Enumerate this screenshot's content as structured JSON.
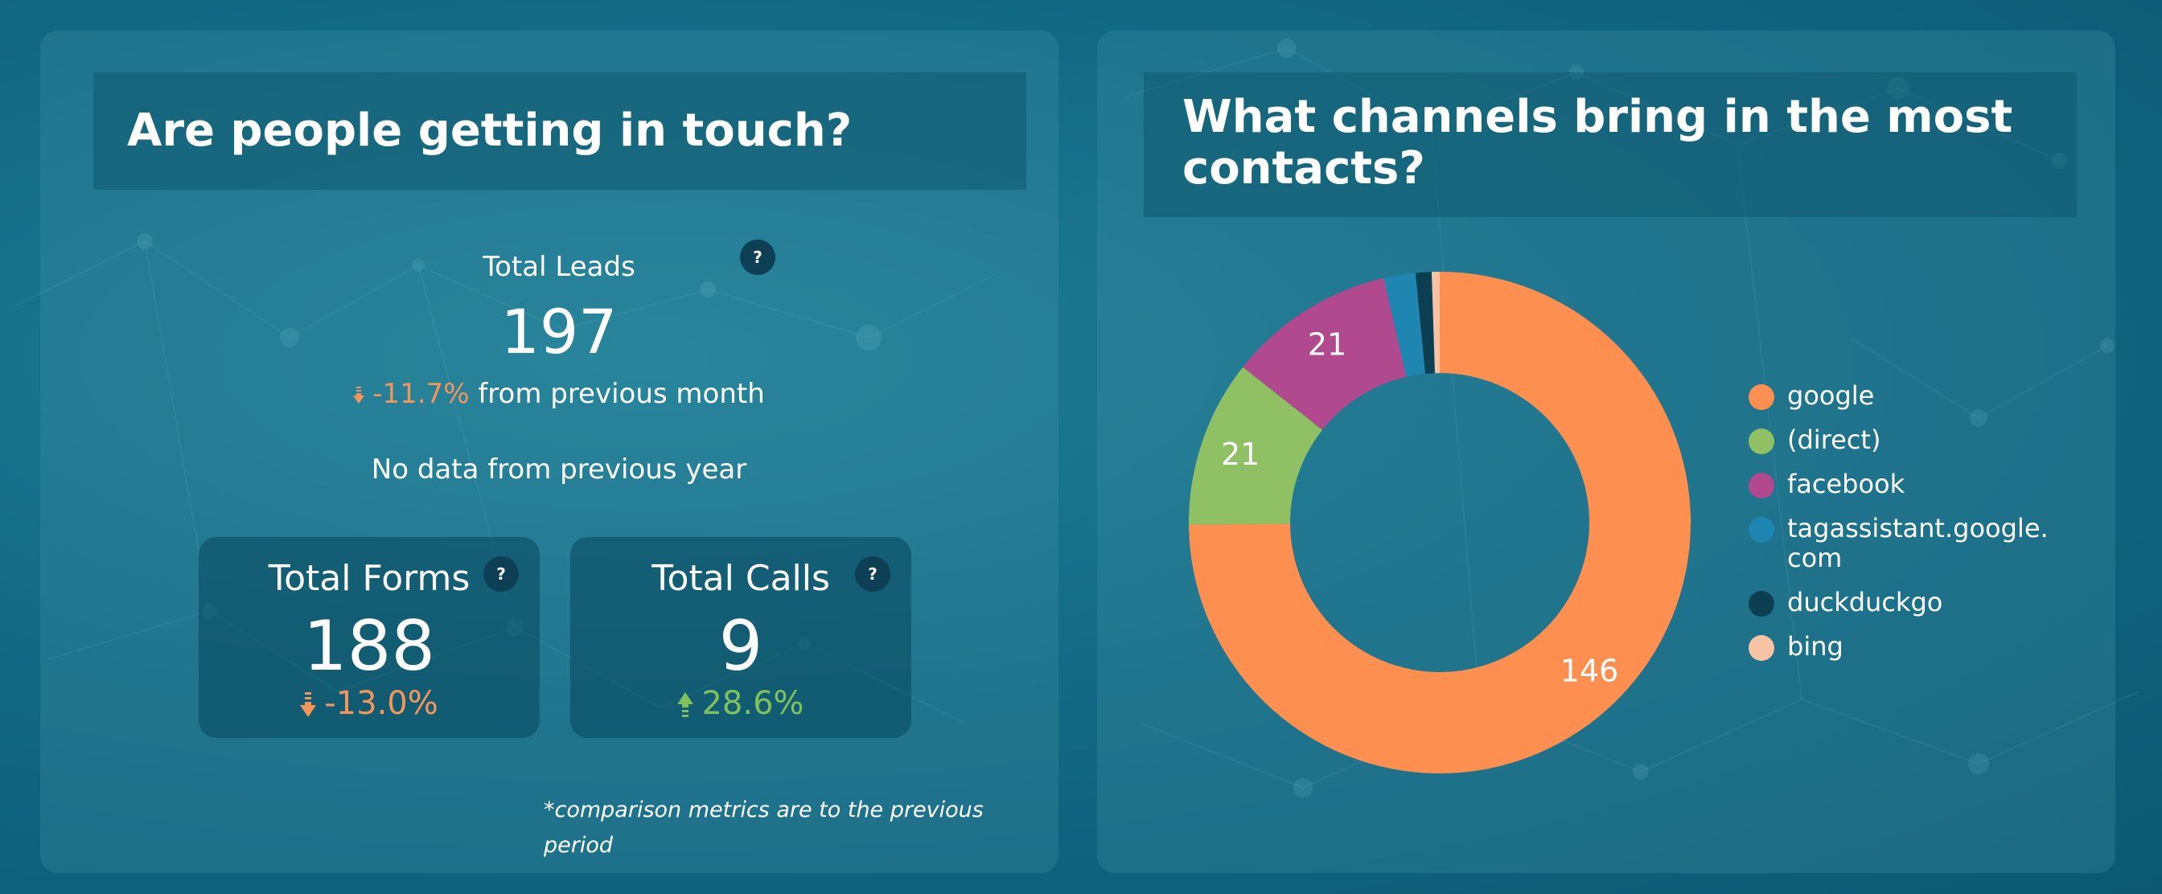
{
  "left": {
    "title": "Are people getting in touch?",
    "total_leads": {
      "label": "Total Leads",
      "value": "197",
      "change": "-11.7%",
      "change_suffix": "from previous month",
      "yearly_note": "No data from previous year"
    },
    "forms": {
      "label": "Total Forms",
      "value": "188",
      "change": "-13.0%"
    },
    "calls": {
      "label": "Total Calls",
      "value": "9",
      "change": "28.6%"
    },
    "help_glyph": "?",
    "footnote": "*comparison metrics are to the previous period"
  },
  "right": {
    "title": "What channels bring in the most contacts?"
  },
  "colors": {
    "negative": "#f5955a",
    "positive": "#7fc15c",
    "google": "#fd8f50",
    "direct": "#8fc063",
    "facebook": "#b1498f",
    "tagassistant": "#1e86b0",
    "duckduckgo": "#0c3f52",
    "bing": "#f8c3a4"
  },
  "icons": [
    "help-icon",
    "arrow-down-icon",
    "arrow-up-icon"
  ],
  "chart_data": {
    "type": "pie",
    "donut": true,
    "title": "What channels bring in the most contacts?",
    "legend_position": "right",
    "series": [
      {
        "name": "google",
        "value": 146,
        "color": "#fd8f50",
        "label": "146"
      },
      {
        "name": "(direct)",
        "value": 21,
        "color": "#8fc063",
        "label": "21"
      },
      {
        "name": "facebook",
        "value": 21,
        "color": "#b1498f",
        "label": "21"
      },
      {
        "name": "tagassistant.google.com",
        "value": 4,
        "color": "#1e86b0",
        "label": ""
      },
      {
        "name": "duckduckgo",
        "value": 2,
        "color": "#0c3f52",
        "label": ""
      },
      {
        "name": "bing",
        "value": 1,
        "color": "#f8c3a4",
        "label": ""
      }
    ],
    "legend": [
      {
        "label": "google",
        "color": "#fd8f50"
      },
      {
        "label": "(direct)",
        "color": "#8fc063"
      },
      {
        "label": "facebook",
        "color": "#b1498f"
      },
      {
        "label": "tagassistant.google.\ncom",
        "color": "#1e86b0"
      },
      {
        "label": "duckduckgo",
        "color": "#0c3f52"
      },
      {
        "label": "bing",
        "color": "#f8c3a4"
      }
    ]
  }
}
